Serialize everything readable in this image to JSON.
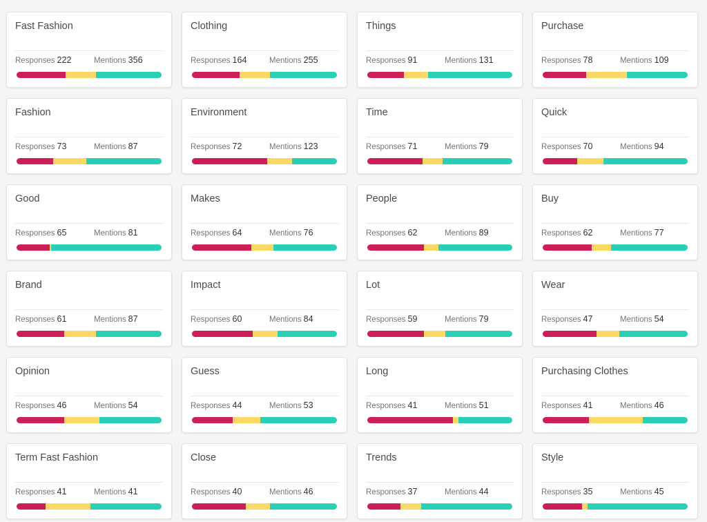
{
  "labels": {
    "responses": "Responses",
    "mentions": "Mentions"
  },
  "colors": {
    "negative": "#cc1f56",
    "neutral": "#fad966",
    "positive": "#2ad0b6"
  },
  "cards": [
    {
      "title": "Fast Fashion",
      "responses": 222,
      "mentions": 356,
      "sentiment": [
        0.34,
        0.21,
        0.45
      ]
    },
    {
      "title": "Clothing",
      "responses": 164,
      "mentions": 255,
      "sentiment": [
        0.33,
        0.21,
        0.46
      ]
    },
    {
      "title": "Things",
      "responses": 91,
      "mentions": 131,
      "sentiment": [
        0.25,
        0.17,
        0.58
      ]
    },
    {
      "title": "Purchase",
      "responses": 78,
      "mentions": 109,
      "sentiment": [
        0.3,
        0.28,
        0.42
      ]
    },
    {
      "title": "Fashion",
      "responses": 73,
      "mentions": 87,
      "sentiment": [
        0.25,
        0.23,
        0.52
      ]
    },
    {
      "title": "Environment",
      "responses": 72,
      "mentions": 123,
      "sentiment": [
        0.52,
        0.17,
        0.31
      ]
    },
    {
      "title": "Time",
      "responses": 71,
      "mentions": 79,
      "sentiment": [
        0.38,
        0.14,
        0.48
      ]
    },
    {
      "title": "Quick",
      "responses": 70,
      "mentions": 94,
      "sentiment": [
        0.24,
        0.18,
        0.58
      ]
    },
    {
      "title": "Good",
      "responses": 65,
      "mentions": 81,
      "sentiment": [
        0.23,
        0.01,
        0.76
      ]
    },
    {
      "title": "Makes",
      "responses": 64,
      "mentions": 76,
      "sentiment": [
        0.41,
        0.15,
        0.44
      ]
    },
    {
      "title": "People",
      "responses": 62,
      "mentions": 89,
      "sentiment": [
        0.39,
        0.1,
        0.51
      ]
    },
    {
      "title": "Buy",
      "responses": 62,
      "mentions": 77,
      "sentiment": [
        0.34,
        0.13,
        0.53
      ]
    },
    {
      "title": "Brand",
      "responses": 61,
      "mentions": 87,
      "sentiment": [
        0.33,
        0.22,
        0.45
      ]
    },
    {
      "title": "Impact",
      "responses": 60,
      "mentions": 84,
      "sentiment": [
        0.42,
        0.17,
        0.41
      ]
    },
    {
      "title": "Lot",
      "responses": 59,
      "mentions": 79,
      "sentiment": [
        0.39,
        0.15,
        0.46
      ]
    },
    {
      "title": "Wear",
      "responses": 47,
      "mentions": 54,
      "sentiment": [
        0.37,
        0.16,
        0.47
      ]
    },
    {
      "title": "Opinion",
      "responses": 46,
      "mentions": 54,
      "sentiment": [
        0.33,
        0.24,
        0.43
      ]
    },
    {
      "title": "Guess",
      "responses": 44,
      "mentions": 53,
      "sentiment": [
        0.28,
        0.19,
        0.53
      ]
    },
    {
      "title": "Long",
      "responses": 41,
      "mentions": 51,
      "sentiment": [
        0.59,
        0.04,
        0.37
      ]
    },
    {
      "title": "Purchasing Clothes",
      "responses": 41,
      "mentions": 46,
      "sentiment": [
        0.32,
        0.37,
        0.31
      ]
    },
    {
      "title": "Term Fast Fashion",
      "responses": 41,
      "mentions": 41,
      "sentiment": [
        0.2,
        0.31,
        0.49
      ]
    },
    {
      "title": "Close",
      "responses": 40,
      "mentions": 46,
      "sentiment": [
        0.37,
        0.17,
        0.46
      ]
    },
    {
      "title": "Trends",
      "responses": 37,
      "mentions": 44,
      "sentiment": [
        0.23,
        0.14,
        0.63
      ]
    },
    {
      "title": "Style",
      "responses": 35,
      "mentions": 45,
      "sentiment": [
        0.27,
        0.04,
        0.69
      ]
    }
  ]
}
